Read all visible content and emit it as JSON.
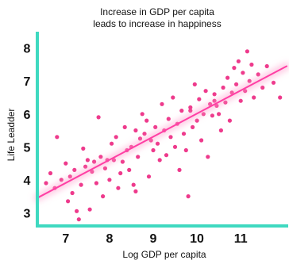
{
  "chart_data": {
    "type": "scatter",
    "title_lines": [
      "Increase in GDP per capita",
      "leads to increase in happiness"
    ],
    "xlabel": "Log GDP per capita",
    "ylabel": "Life Leadder",
    "xlim": [
      6.35,
      12.05
    ],
    "ylim": [
      2.6,
      8.45
    ],
    "xticks": [
      7,
      8,
      9,
      10,
      11
    ],
    "yticks": [
      3,
      4,
      5,
      6,
      7,
      8
    ],
    "grid": false,
    "trendline": {
      "x": [
        6.35,
        12.05
      ],
      "y": [
        3.45,
        7.45
      ]
    },
    "colors": {
      "points": "#ee3a8c",
      "trendline": "#ff3fa4",
      "glow": "#ff9dcc",
      "axes": "#3fd9c0",
      "text": "#111111"
    },
    "points": [
      [
        6.55,
        3.9
      ],
      [
        6.65,
        4.2
      ],
      [
        6.75,
        3.75
      ],
      [
        6.8,
        5.3
      ],
      [
        6.9,
        4.0
      ],
      [
        7.0,
        4.5
      ],
      [
        7.05,
        3.35
      ],
      [
        7.1,
        4.1
      ],
      [
        7.15,
        3.6
      ],
      [
        7.2,
        4.3
      ],
      [
        7.25,
        3.05
      ],
      [
        7.3,
        2.8
      ],
      [
        7.35,
        3.85
      ],
      [
        7.4,
        4.95
      ],
      [
        7.45,
        4.4
      ],
      [
        7.5,
        4.6
      ],
      [
        7.55,
        3.1
      ],
      [
        7.6,
        4.25
      ],
      [
        7.65,
        4.55
      ],
      [
        7.7,
        3.9
      ],
      [
        7.75,
        5.9
      ],
      [
        7.8,
        4.7
      ],
      [
        7.85,
        3.5
      ],
      [
        7.9,
        4.35
      ],
      [
        7.95,
        4.6
      ],
      [
        8.0,
        4.0
      ],
      [
        8.05,
        5.1
      ],
      [
        8.1,
        4.6
      ],
      [
        8.15,
        5.3
      ],
      [
        8.2,
        3.75
      ],
      [
        8.25,
        4.2
      ],
      [
        8.3,
        4.55
      ],
      [
        8.35,
        5.6
      ],
      [
        8.4,
        4.9
      ],
      [
        8.45,
        4.3
      ],
      [
        8.5,
        5.0
      ],
      [
        8.55,
        3.85
      ],
      [
        8.6,
        5.5
      ],
      [
        8.65,
        4.7
      ],
      [
        8.7,
        5.25
      ],
      [
        8.75,
        6.0
      ],
      [
        8.8,
        5.4
      ],
      [
        8.85,
        5.8
      ],
      [
        8.9,
        4.1
      ],
      [
        8.95,
        5.2
      ],
      [
        9.0,
        4.9
      ],
      [
        9.05,
        5.6
      ],
      [
        9.1,
        5.1
      ],
      [
        9.15,
        4.6
      ],
      [
        9.2,
        6.3
      ],
      [
        9.25,
        5.5
      ],
      [
        9.3,
        4.75
      ],
      [
        9.35,
        5.85
      ],
      [
        9.4,
        5.3
      ],
      [
        9.45,
        6.5
      ],
      [
        9.5,
        5.0
      ],
      [
        9.55,
        5.7
      ],
      [
        9.6,
        4.3
      ],
      [
        9.65,
        6.1
      ],
      [
        9.7,
        5.4
      ],
      [
        9.75,
        4.9
      ],
      [
        9.8,
        3.5
      ],
      [
        9.85,
        6.2
      ],
      [
        9.9,
        5.6
      ],
      [
        9.95,
        6.9
      ],
      [
        10.0,
        5.8
      ],
      [
        10.05,
        6.45
      ],
      [
        10.1,
        5.2
      ],
      [
        10.15,
        6.0
      ],
      [
        10.2,
        6.7
      ],
      [
        10.25,
        4.7
      ],
      [
        10.3,
        6.3
      ],
      [
        10.35,
        5.95
      ],
      [
        10.4,
        6.6
      ],
      [
        10.45,
        6.25
      ],
      [
        10.5,
        6.0
      ],
      [
        10.55,
        5.5
      ],
      [
        10.6,
        6.8
      ],
      [
        10.65,
        6.35
      ],
      [
        10.7,
        7.1
      ],
      [
        10.75,
        5.8
      ],
      [
        10.8,
        6.65
      ],
      [
        10.85,
        7.4
      ],
      [
        10.9,
        6.9
      ],
      [
        10.95,
        7.6
      ],
      [
        11.0,
        6.4
      ],
      [
        11.05,
        7.25
      ],
      [
        11.1,
        6.7
      ],
      [
        11.15,
        7.9
      ],
      [
        11.2,
        7.0
      ],
      [
        11.25,
        7.5
      ],
      [
        11.3,
        6.5
      ],
      [
        11.4,
        7.2
      ],
      [
        11.5,
        6.8
      ],
      [
        11.6,
        7.45
      ],
      [
        11.75,
        6.95
      ],
      [
        11.9,
        6.5
      ],
      [
        8.6,
        3.65
      ],
      [
        9.85,
        6.1
      ],
      [
        10.4,
        6.4
      ]
    ]
  }
}
